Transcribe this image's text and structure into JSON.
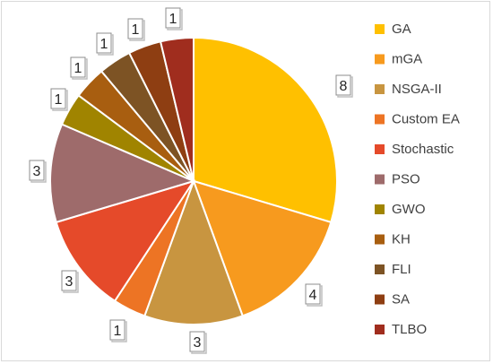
{
  "chart_data": {
    "type": "pie",
    "title": "",
    "categories": [
      "GA",
      "mGA",
      "NSGA-II",
      "Custom EA",
      "Stochastic",
      "PSO",
      "GWO",
      "KH",
      "FLI",
      "SA",
      "TLBO"
    ],
    "values": [
      8,
      4,
      3,
      1,
      3,
      3,
      1,
      1,
      1,
      1,
      1
    ],
    "data_labels": [
      "8",
      "4",
      "3",
      "1",
      "3",
      "3",
      "1",
      "1",
      "1",
      "1",
      "1"
    ],
    "colors": [
      "#FFC000",
      "#F79A1E",
      "#C89540",
      "#ED7424",
      "#E54A2A",
      "#9E6B6B",
      "#A08400",
      "#A85E10",
      "#7D5324",
      "#8E3E12",
      "#A02D1E"
    ],
    "start_angle": "12 o'clock",
    "direction": "clockwise",
    "legend": {
      "position": "right"
    }
  }
}
